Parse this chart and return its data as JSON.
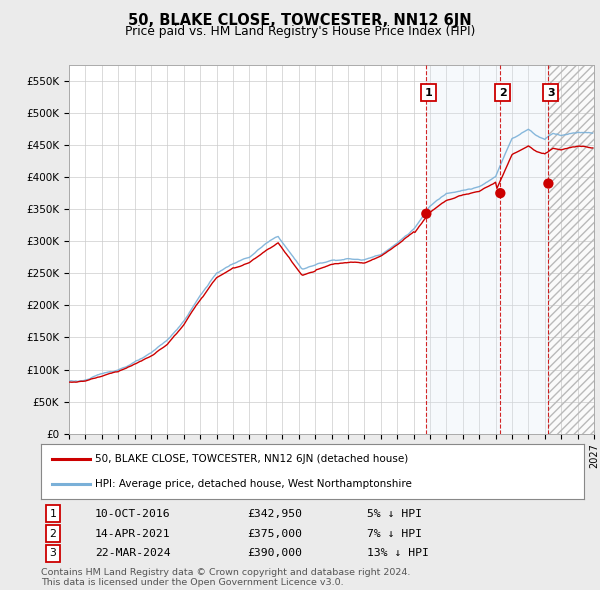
{
  "title": "50, BLAKE CLOSE, TOWCESTER, NN12 6JN",
  "subtitle": "Price paid vs. HM Land Registry's House Price Index (HPI)",
  "ylim": [
    0,
    575000
  ],
  "yticks": [
    0,
    50000,
    100000,
    150000,
    200000,
    250000,
    300000,
    350000,
    400000,
    450000,
    500000,
    550000
  ],
  "ytick_labels": [
    "£0",
    "£50K",
    "£100K",
    "£150K",
    "£200K",
    "£250K",
    "£300K",
    "£350K",
    "£400K",
    "£450K",
    "£500K",
    "£550K"
  ],
  "hpi_color": "#7ab0d8",
  "price_color": "#cc0000",
  "transaction_line_color": "#cc0000",
  "transaction_bg_color": "#dce8f5",
  "hatch_color": "#c8c8c8",
  "transactions": [
    {
      "label": "1",
      "date": "10-OCT-2016",
      "price": 342950,
      "hpi_pct": "5% ↓ HPI",
      "x_year": 2016.78
    },
    {
      "label": "2",
      "date": "14-APR-2021",
      "price": 375000,
      "hpi_pct": "7% ↓ HPI",
      "x_year": 2021.29
    },
    {
      "label": "3",
      "date": "22-MAR-2024",
      "price": 390000,
      "hpi_pct": "13% ↓ HPI",
      "x_year": 2024.22
    }
  ],
  "legend_entries": [
    {
      "label": "50, BLAKE CLOSE, TOWCESTER, NN12 6JN (detached house)",
      "color": "#cc0000"
    },
    {
      "label": "HPI: Average price, detached house, West Northamptonshire",
      "color": "#7ab0d8"
    }
  ],
  "footer_lines": [
    "Contains HM Land Registry data © Crown copyright and database right 2024.",
    "This data is licensed under the Open Government Licence v3.0."
  ],
  "xmin": 1995.0,
  "xmax": 2027.0,
  "background_color": "#ebebeb",
  "plot_bg_color": "#ffffff",
  "grid_color": "#cccccc"
}
